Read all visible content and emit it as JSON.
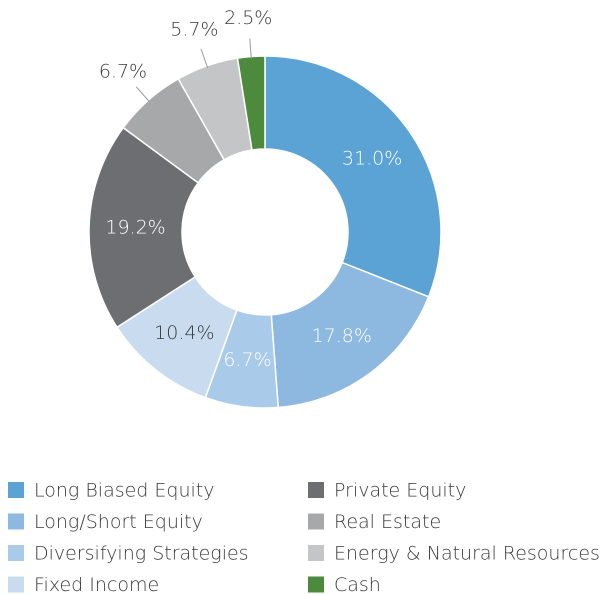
{
  "chart_data": {
    "type": "donut",
    "categories": [
      "Long Biased Equity",
      "Long/Short Equity",
      "Diversifying Strategies",
      "Fixed Income",
      "Private Equity",
      "Real Estate",
      "Energy & Natural Resources",
      "Cash"
    ],
    "values": [
      31.0,
      17.8,
      6.7,
      10.4,
      19.2,
      6.7,
      5.7,
      2.5
    ],
    "value_labels": [
      "31.0%",
      "17.8%",
      "6.7%",
      "10.4%",
      "19.2%",
      "6.7%",
      "5.7%",
      "2.5%"
    ],
    "colors": [
      "#5ba3d5",
      "#8db9e1",
      "#aacae9",
      "#c9dcef",
      "#6d6e71",
      "#a7a8aa",
      "#c4c5c6",
      "#4e8a3e"
    ],
    "legend": "bottom"
  }
}
